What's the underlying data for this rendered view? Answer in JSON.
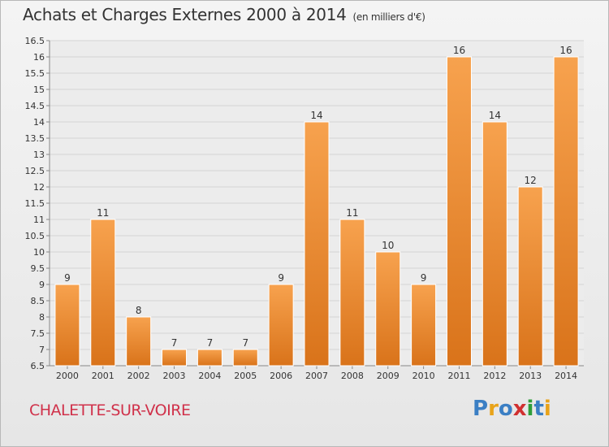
{
  "header": {
    "title": "Achats et Charges Externes 2000 à 2014",
    "unit": "(en milliers d'€)"
  },
  "footer": {
    "city": "CHALETTE-SUR-VOIRE",
    "brand": "Proxiti"
  },
  "colors": {
    "bar_top": "#f7a24e",
    "bar_bottom": "#d9731a",
    "city": "#d0314a",
    "logo": [
      "#3b7fc4",
      "#e8a31a",
      "#3b7fc4",
      "#d03030",
      "#2e9e3a",
      "#3b7fc4",
      "#e8a31a"
    ]
  },
  "chart_data": {
    "type": "bar",
    "title": "Achats et Charges Externes 2000 à 2014",
    "subtitle": "(en milliers d'€)",
    "xlabel": "",
    "ylabel": "",
    "categories": [
      "2000",
      "2001",
      "2002",
      "2003",
      "2004",
      "2005",
      "2006",
      "2007",
      "2008",
      "2009",
      "2010",
      "2011",
      "2012",
      "2013",
      "2014"
    ],
    "values": [
      9,
      11,
      8,
      7,
      7,
      7,
      9,
      14,
      11,
      10,
      9,
      16,
      14,
      12,
      16
    ],
    "ylim": [
      6.5,
      16.5
    ],
    "yticks": [
      "6.5",
      "7",
      "7.5",
      "8",
      "8.5",
      "9",
      "9.5",
      "10",
      "10.5",
      "11",
      "11.5",
      "12",
      "12.5",
      "13",
      "13.5",
      "14",
      "14.5",
      "15",
      "15.5",
      "16",
      "16.5"
    ],
    "grid": true,
    "legend": "none"
  }
}
